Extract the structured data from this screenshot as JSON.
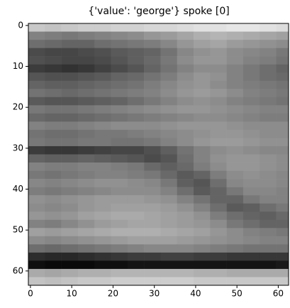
{
  "chart_data": {
    "type": "heatmap",
    "title": "{'value': 'george'} spoke [0]",
    "colormap": "gray",
    "x": [
      0,
      4,
      8,
      12,
      16,
      20,
      24,
      28,
      32,
      36,
      40,
      44,
      48,
      52,
      56,
      60
    ],
    "y": [
      0,
      2,
      4,
      6,
      8,
      10,
      12,
      14,
      16,
      18,
      20,
      22,
      24,
      26,
      28,
      30,
      32,
      34,
      36,
      38,
      40,
      42,
      44,
      46,
      48,
      50,
      52,
      54,
      56,
      58,
      60,
      62
    ],
    "values": [
      [
        200,
        195,
        200,
        205,
        205,
        210,
        210,
        215,
        215,
        220,
        225,
        225,
        230,
        230,
        225,
        220
      ],
      [
        130,
        125,
        120,
        125,
        130,
        135,
        140,
        150,
        155,
        165,
        175,
        180,
        175,
        170,
        165,
        160
      ],
      [
        110,
        105,
        100,
        100,
        110,
        115,
        120,
        125,
        135,
        150,
        160,
        165,
        155,
        150,
        145,
        140
      ],
      [
        75,
        70,
        70,
        75,
        80,
        90,
        95,
        100,
        115,
        135,
        145,
        150,
        140,
        135,
        130,
        120
      ],
      [
        80,
        75,
        70,
        70,
        75,
        85,
        95,
        105,
        120,
        140,
        150,
        150,
        140,
        130,
        125,
        115
      ],
      [
        60,
        55,
        50,
        55,
        65,
        75,
        85,
        100,
        115,
        130,
        140,
        140,
        130,
        120,
        110,
        100
      ],
      [
        85,
        80,
        80,
        85,
        90,
        100,
        105,
        115,
        125,
        140,
        150,
        145,
        130,
        120,
        110,
        105
      ],
      [
        100,
        95,
        95,
        100,
        105,
        110,
        115,
        125,
        135,
        145,
        150,
        140,
        130,
        125,
        120,
        115
      ],
      [
        115,
        110,
        105,
        110,
        115,
        120,
        125,
        130,
        140,
        150,
        155,
        150,
        140,
        130,
        125,
        120
      ],
      [
        90,
        85,
        85,
        90,
        95,
        100,
        110,
        120,
        130,
        140,
        145,
        140,
        130,
        125,
        120,
        115
      ],
      [
        120,
        115,
        115,
        120,
        125,
        130,
        135,
        140,
        145,
        150,
        150,
        145,
        140,
        135,
        130,
        130
      ],
      [
        105,
        100,
        100,
        105,
        110,
        115,
        120,
        125,
        130,
        135,
        140,
        140,
        135,
        130,
        125,
        125
      ],
      [
        130,
        125,
        125,
        130,
        135,
        140,
        140,
        140,
        145,
        150,
        150,
        150,
        145,
        140,
        140,
        140
      ],
      [
        115,
        110,
        110,
        115,
        120,
        120,
        125,
        130,
        135,
        140,
        145,
        150,
        150,
        145,
        140,
        140
      ],
      [
        120,
        115,
        115,
        120,
        120,
        115,
        115,
        120,
        130,
        140,
        150,
        155,
        155,
        150,
        145,
        145
      ],
      [
        60,
        55,
        55,
        60,
        65,
        70,
        70,
        80,
        95,
        115,
        130,
        140,
        145,
        140,
        135,
        135
      ],
      [
        100,
        95,
        95,
        100,
        95,
        90,
        85,
        75,
        85,
        110,
        130,
        145,
        150,
        150,
        145,
        140
      ],
      [
        130,
        125,
        125,
        130,
        130,
        125,
        120,
        105,
        95,
        105,
        125,
        140,
        150,
        150,
        145,
        140
      ],
      [
        120,
        115,
        120,
        125,
        130,
        130,
        125,
        120,
        105,
        90,
        100,
        125,
        140,
        145,
        140,
        135
      ],
      [
        135,
        130,
        135,
        140,
        145,
        145,
        140,
        135,
        120,
        95,
        85,
        110,
        135,
        140,
        140,
        135
      ],
      [
        125,
        120,
        125,
        130,
        135,
        140,
        140,
        140,
        130,
        110,
        90,
        100,
        120,
        135,
        135,
        130
      ],
      [
        145,
        140,
        145,
        150,
        155,
        155,
        155,
        150,
        145,
        130,
        115,
        100,
        100,
        120,
        130,
        130
      ],
      [
        140,
        135,
        140,
        150,
        155,
        160,
        160,
        160,
        155,
        145,
        130,
        110,
        90,
        95,
        110,
        120
      ],
      [
        150,
        145,
        150,
        160,
        165,
        170,
        170,
        165,
        160,
        155,
        145,
        125,
        110,
        100,
        95,
        105
      ],
      [
        130,
        125,
        135,
        145,
        155,
        160,
        165,
        165,
        160,
        155,
        150,
        140,
        120,
        110,
        100,
        100
      ],
      [
        160,
        155,
        160,
        165,
        170,
        175,
        175,
        175,
        170,
        165,
        160,
        150,
        140,
        130,
        125,
        120
      ],
      [
        140,
        135,
        140,
        145,
        150,
        155,
        160,
        160,
        160,
        155,
        150,
        145,
        140,
        135,
        130,
        130
      ],
      [
        110,
        105,
        110,
        115,
        120,
        125,
        130,
        135,
        135,
        135,
        130,
        125,
        120,
        115,
        115,
        115
      ],
      [
        45,
        40,
        40,
        45,
        50,
        55,
        60,
        60,
        65,
        65,
        60,
        60,
        55,
        55,
        55,
        55
      ],
      [
        15,
        10,
        10,
        10,
        15,
        15,
        20,
        20,
        20,
        20,
        20,
        20,
        20,
        20,
        20,
        25
      ],
      [
        170,
        165,
        170,
        175,
        175,
        180,
        180,
        180,
        180,
        180,
        175,
        175,
        170,
        170,
        170,
        170
      ],
      [
        195,
        190,
        195,
        200,
        200,
        205,
        205,
        205,
        205,
        205,
        200,
        200,
        200,
        200,
        200,
        200
      ]
    ],
    "xlim": [
      -0.5,
      62.5
    ],
    "ylim": [
      63.5,
      -0.5
    ],
    "xticks": [
      0,
      10,
      20,
      30,
      40,
      50,
      60
    ],
    "yticks": [
      0,
      10,
      20,
      30,
      40,
      50,
      60
    ]
  }
}
